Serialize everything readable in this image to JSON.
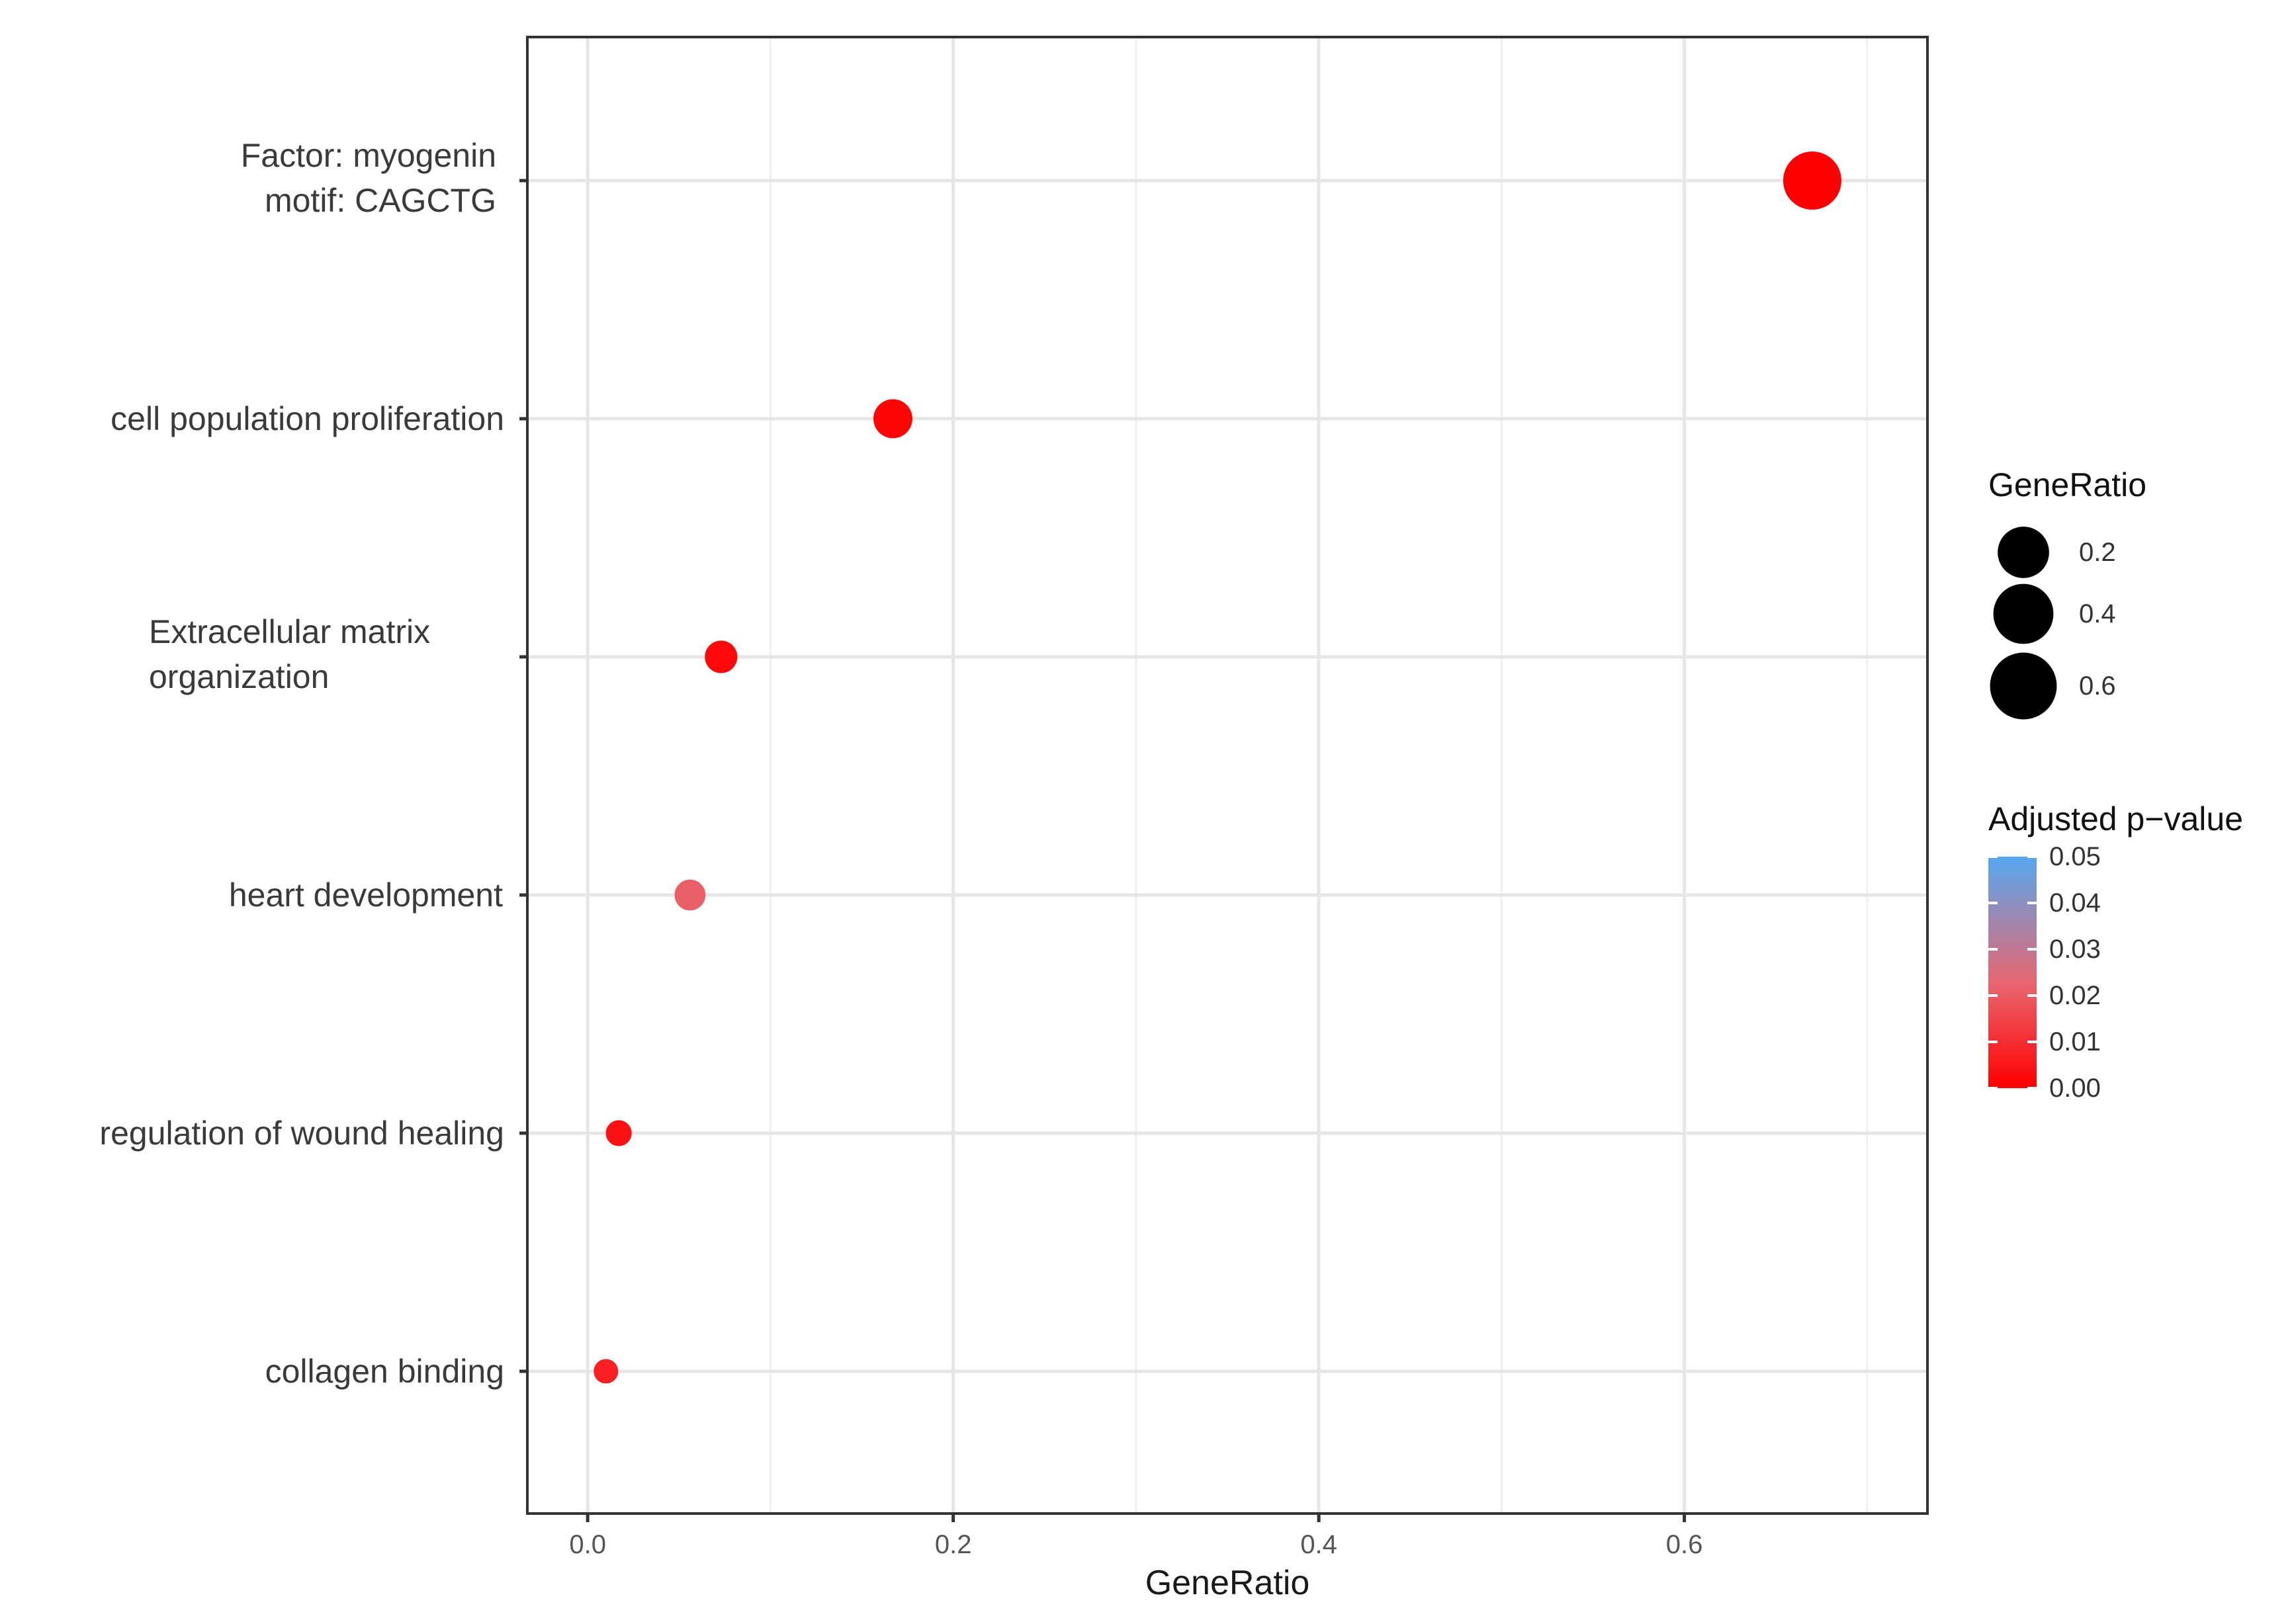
{
  "chart_data": {
    "type": "scatter",
    "subtype": "dot-plot",
    "title": "",
    "xlabel": "GeneRatio",
    "ylabel": "",
    "xlim": [
      -0.033,
      0.733
    ],
    "x_ticks": [
      0.0,
      0.2,
      0.4,
      0.6
    ],
    "x_tick_labels": [
      "0.0",
      "0.2",
      "0.4",
      "0.6"
    ],
    "x_minor_gridlines": [
      0.1,
      0.3,
      0.5,
      0.7
    ],
    "grid": true,
    "categories": [
      [
        "Factor: myogenin",
        "motif: CAGCTG"
      ],
      [
        "cell population proliferation"
      ],
      [
        "Extracellular matrix",
        "organization"
      ],
      [
        "heart development"
      ],
      [
        "regulation of wound healing"
      ],
      [
        "collagen binding"
      ]
    ],
    "points": [
      {
        "category_index": 0,
        "gene_ratio": 0.67,
        "p_adjust": 0.0
      },
      {
        "category_index": 1,
        "gene_ratio": 0.167,
        "p_adjust": 0.001
      },
      {
        "category_index": 2,
        "gene_ratio": 0.073,
        "p_adjust": 0.002
      },
      {
        "category_index": 3,
        "gene_ratio": 0.056,
        "p_adjust": 0.021
      },
      {
        "category_index": 4,
        "gene_ratio": 0.017,
        "p_adjust": 0.004
      },
      {
        "category_index": 5,
        "gene_ratio": 0.01,
        "p_adjust": 0.007
      }
    ],
    "size_legend": {
      "title": "GeneRatio",
      "values": [
        0.2,
        0.4,
        0.6
      ],
      "labels": [
        "0.2",
        "0.4",
        "0.6"
      ]
    },
    "color_legend": {
      "title": "Adjusted p−value",
      "range": [
        0.0,
        0.05
      ],
      "ticks": [
        0.05,
        0.04,
        0.03,
        0.02,
        0.01,
        0.0
      ],
      "tick_labels": [
        "0.05",
        "0.04",
        "0.03",
        "0.02",
        "0.01",
        "0.00"
      ],
      "low_color": "#ff0000",
      "high_color": "#56a8f0"
    },
    "legend_placement": "right"
  }
}
